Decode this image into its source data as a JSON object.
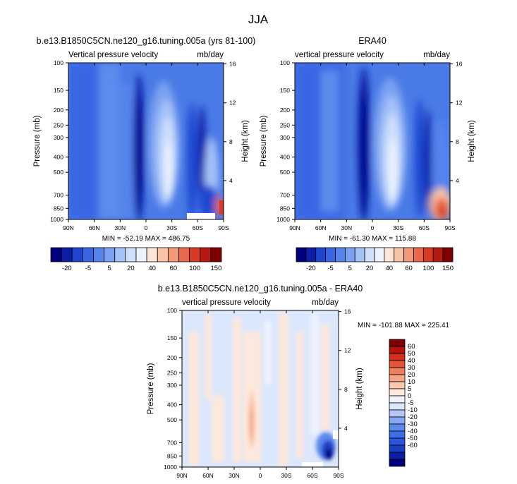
{
  "page_title": "JJA",
  "colors": {
    "levels_abs": [
      "#00007f",
      "#0a1fa6",
      "#1f46cf",
      "#3a66e3",
      "#5584ec",
      "#7aa2f2",
      "#a4c2f7",
      "#cfe0fb",
      "#eef4ff",
      "#fde6d8",
      "#f8c3a6",
      "#f29975",
      "#e9684a",
      "#d83a25",
      "#b51a10",
      "#7f0000"
    ],
    "levels_diff": [
      "#00007f",
      "#0a1fa6",
      "#1a3cc6",
      "#2a55dc",
      "#3d6ee8",
      "#5c89ee",
      "#87a9f4",
      "#b3c8f8",
      "#dbe7fc",
      "#eef3ff",
      "#fde8dc",
      "#fac8ae",
      "#f5a484",
      "#ee7d5c",
      "#e4553a",
      "#d32f1e",
      "#b51309",
      "#7f0000"
    ]
  },
  "chart_data": [
    {
      "type": "heatmap",
      "title": "b.e13.B1850C5CN.ne120_g16.tuning.005a (yrs 81-100)",
      "left_label": "Vertical pressure velocity",
      "right_label": "mb/day",
      "xlabel": "",
      "ylabel": "Pressure (mb)",
      "y2label": "Height (km)",
      "x_ticks": [
        "90N",
        "60N",
        "30N",
        "0",
        "30S",
        "60S",
        "90S"
      ],
      "y_ticks": [
        "100",
        "150",
        "200",
        "250",
        "300",
        "400",
        "500",
        "700",
        "850",
        "1000"
      ],
      "y2_ticks": [
        "16",
        "12",
        "8",
        "4"
      ],
      "min": -52.19,
      "max": 486.75,
      "stats_text": "MIN = -52.19   MAX = 486.75",
      "colorbar_labels": [
        "-20",
        "-5",
        "5",
        "20",
        "40",
        "60",
        "100",
        "150"
      ]
    },
    {
      "type": "heatmap",
      "title": "ERA40",
      "left_label": "vertical pressure velocity",
      "right_label": "mb/day",
      "ylabel": "Pressure (mb)",
      "y2label": "Height (km)",
      "x_ticks": [
        "90N",
        "60N",
        "30N",
        "0",
        "30S",
        "60S",
        "90S"
      ],
      "y_ticks": [
        "100",
        "150",
        "200",
        "250",
        "300",
        "400",
        "500",
        "700",
        "850",
        "1000"
      ],
      "y2_ticks": [
        "16",
        "12",
        "8",
        "4"
      ],
      "min": -61.3,
      "max": 115.88,
      "stats_text": "MIN = -61.30   MAX = 115.88",
      "colorbar_labels": [
        "-20",
        "-5",
        "5",
        "20",
        "40",
        "60",
        "100",
        "150"
      ]
    },
    {
      "type": "heatmap",
      "title": "b.e13.B1850C5CN.ne120_g16.tuning.005a - ERA40",
      "left_label": "vertical pressure velocity",
      "right_label": "mb/day",
      "ylabel": "Pressure (mb)",
      "y2label": "Height (km)",
      "x_ticks": [
        "90N",
        "60N",
        "30N",
        "0",
        "30S",
        "60S",
        "90S"
      ],
      "y_ticks": [
        "100",
        "150",
        "200",
        "250",
        "300",
        "400",
        "500",
        "700",
        "850",
        "1000"
      ],
      "y2_ticks": [
        "16",
        "12",
        "8",
        "4"
      ],
      "min": -101.88,
      "max": 225.41,
      "stats_text": "MIN = -101.88  MAX = 225.41",
      "colorbar_labels": [
        "60",
        "50",
        "40",
        "30",
        "20",
        "10",
        "5",
        "0",
        "-5",
        "-10",
        "-20",
        "-30",
        "-40",
        "-50",
        "-60"
      ]
    }
  ]
}
